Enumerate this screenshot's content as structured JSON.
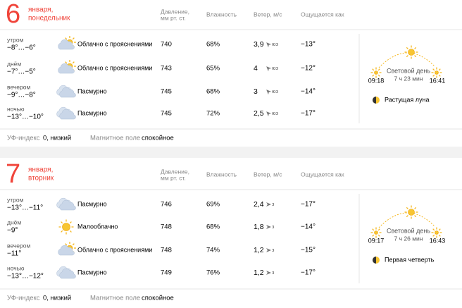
{
  "columns": [
    "Давление,",
    "мм рт. ст.",
    "Влажность",
    "Ветер, м/с",
    "Ощущается как"
  ],
  "labels": {
    "uv": "УФ-индекс",
    "magnetic": "Магнитное поле",
    "daylight": "Световой день"
  },
  "days": [
    {
      "day": "6",
      "month": "января,",
      "weekday": "понедельник",
      "rows": [
        {
          "period": "утром",
          "temp": "−8°…−6°",
          "condition": "Облачно с прояснениями",
          "pressure": "740",
          "humidity": "68%",
          "wind": "3,9",
          "dir": "юз",
          "feels": "−13°"
        },
        {
          "period": "днём",
          "temp": "−7°…−5°",
          "condition": "Облачно с прояснениями",
          "pressure": "743",
          "humidity": "65%",
          "wind": "4",
          "dir": "юз",
          "feels": "−12°"
        },
        {
          "period": "вечером",
          "temp": "−9°…−8°",
          "condition": "Пасмурно",
          "pressure": "745",
          "humidity": "68%",
          "wind": "3",
          "dir": "юз",
          "feels": "−14°"
        },
        {
          "period": "ночью",
          "temp": "−13°…−10°",
          "condition": "Пасмурно",
          "pressure": "745",
          "humidity": "72%",
          "wind": "2,5",
          "dir": "юз",
          "feels": "−17°"
        }
      ],
      "daylight": "7 ч 23 мин",
      "sunrise": "09:18",
      "sunset": "16:41",
      "moon": "Растущая луна",
      "uv": "0, низкий",
      "magnetic": "спокойное"
    },
    {
      "day": "7",
      "month": "января,",
      "weekday": "вторник",
      "rows": [
        {
          "period": "утром",
          "temp": "−13°…−11°",
          "condition": "Пасмурно",
          "pressure": "746",
          "humidity": "69%",
          "wind": "2,4",
          "dir": "з",
          "feels": "−17°"
        },
        {
          "period": "днём",
          "temp": "−9°",
          "condition": "Малооблачно",
          "pressure": "748",
          "humidity": "68%",
          "wind": "1,8",
          "dir": "з",
          "feels": "−14°"
        },
        {
          "period": "вечером",
          "temp": "−11°",
          "condition": "Облачно с прояснениями",
          "pressure": "748",
          "humidity": "74%",
          "wind": "1,2",
          "dir": "з",
          "feels": "−15°"
        },
        {
          "period": "ночью",
          "temp": "−13°…−12°",
          "condition": "Пасмурно",
          "pressure": "749",
          "humidity": "76%",
          "wind": "1,2",
          "dir": "з",
          "feels": "−17°"
        }
      ],
      "daylight": "7 ч 26 мин",
      "sunrise": "09:17",
      "sunset": "16:43",
      "moon": "Первая четверть",
      "uv": "0, низкий",
      "magnetic": "спокойное"
    }
  ]
}
